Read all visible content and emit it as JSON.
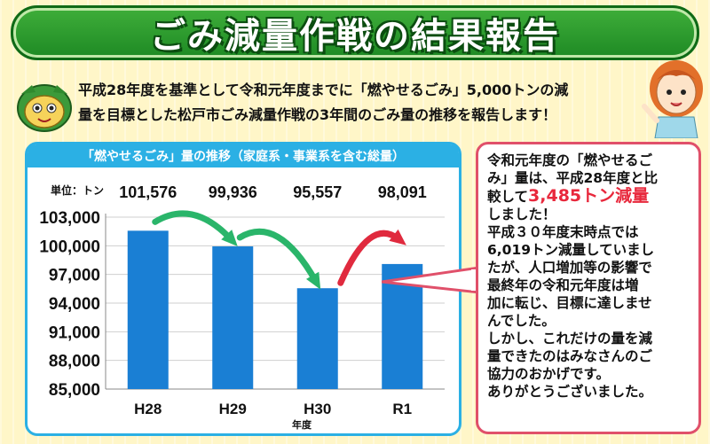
{
  "title": "ごみ減量作戦の結果報告",
  "intro": {
    "line1": "平成28年度を基準として令和元年度までに「燃やせるごみ」5,000トンの減",
    "line2": "量を目標とした松戸市ごみ減量作戦の3年間のごみ量の推移を報告します！"
  },
  "chart_header": "「燃やせるごみ」量の推移（家庭系・事業系を含む総量）",
  "chart_data": {
    "type": "bar",
    "categories": [
      "H28",
      "H29",
      "H30",
      "R1"
    ],
    "values": [
      101576,
      99936,
      95557,
      98091
    ],
    "value_labels": [
      "101,576",
      "99,936",
      "95,557",
      "98,091"
    ],
    "unit_label": "単位：トン",
    "xlabel": "年度",
    "ylabel": "",
    "ylim": [
      85000,
      103000
    ],
    "yticks": [
      85000,
      88000,
      91000,
      94000,
      97000,
      100000,
      103000
    ],
    "ytick_labels": [
      "85,000",
      "88,000",
      "91,000",
      "94,000",
      "97,000",
      "100,000",
      "103,000"
    ],
    "grid": true,
    "colors": {
      "bar": "#1a7fd4",
      "arrow_down": "#2ab56a",
      "arrow_up": "#e02a3e"
    }
  },
  "callout": {
    "line1": "令和元年度の「燃やせるご",
    "line2": "み」量は、平成28年度と比",
    "line3_pre": "較して",
    "line3_highlight": "3,485トン減量",
    "line4": "しました！",
    "line5": "平成３０年度末時点では",
    "line6": "6,019トン減量していまし",
    "line7": "たが、人口増加等の影響で",
    "line8": "最終年の令和元年度は増",
    "line9": "加に転じ、目標に達しませ",
    "line10": "んでした。",
    "line11": "しかし、これだけの量を減",
    "line12": "量できたのはみなさんのご",
    "line13": "協力のおかげです。",
    "line14": "ありがとうございました。"
  }
}
